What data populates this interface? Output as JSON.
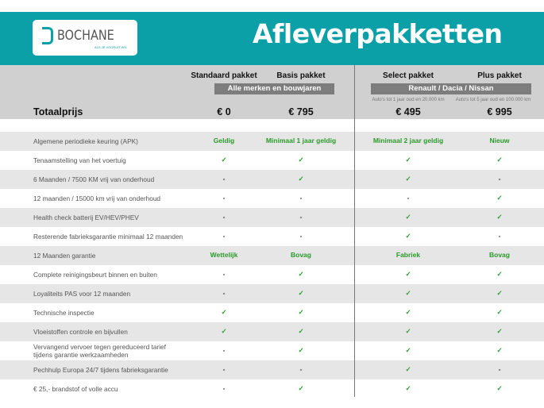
{
  "header": {
    "logo_text": "BOCHANE",
    "logo_tagline": "ALS JE VOORUIT WIL",
    "title": "Afleverpakketten"
  },
  "colors": {
    "brand": "#0ba0a8",
    "check": "#2a9a2a",
    "header_bg": "#d0d0d0",
    "row_alt": "#e6e6e6"
  },
  "packages": [
    {
      "name": "Standaard pakket",
      "price": "€ 0"
    },
    {
      "name": "Basis pakket",
      "price": "€ 795"
    },
    {
      "name": "Select pakket",
      "price": "€ 495",
      "note": "Auto's tot 1 jaar oud en 20.000 km"
    },
    {
      "name": "Plus pakket",
      "price": "€ 995",
      "note": "Auto's tot 5 jaar oud en 100.000 km"
    }
  ],
  "groups": {
    "left": "Alle merken en bouwjaren",
    "right": "Renault / Dacia / Nissan"
  },
  "total_label": "Totaalprijs",
  "rows": [
    {
      "label": "Algemene periodieke keuring (APK)",
      "values": [
        "Geldig",
        "Minimaal 1 jaar geldig",
        "Minimaal 2 jaar geldig",
        "Nieuw"
      ]
    },
    {
      "label": "Tenaamstelling van het voertuig",
      "values": [
        "✓",
        "✓",
        "✓",
        "✓"
      ]
    },
    {
      "label": "6 Maanden / 7500 KM vrij van onderhoud",
      "values": [
        "-",
        "✓",
        "✓",
        "-"
      ]
    },
    {
      "label": "12 maanden / 15000 km vrij van onderhoud",
      "values": [
        "-",
        "-",
        "-",
        "✓"
      ]
    },
    {
      "label": "Health check batterij EV/HEV/PHEV",
      "values": [
        "-",
        "-",
        "✓",
        "✓"
      ]
    },
    {
      "label": "Resterende fabrieksgarantie minimaal 12 maanden",
      "values": [
        "-",
        "-",
        "✓",
        "-"
      ]
    },
    {
      "label": "12 Maanden  garantie",
      "values": [
        "Wettelijk",
        "Bovag",
        "Fabriek",
        "Bovag"
      ]
    },
    {
      "label": "Complete reinigingsbeurt binnen en buiten",
      "values": [
        "-",
        "✓",
        "✓",
        "✓"
      ]
    },
    {
      "label": "Loyaliteits PAS voor 12 maanden",
      "values": [
        "-",
        "✓",
        "✓",
        "✓"
      ]
    },
    {
      "label": "Technische inspectie",
      "values": [
        "✓",
        "✓",
        "✓",
        "✓"
      ]
    },
    {
      "label": "Vloeistoffen controle en bijvullen",
      "values": [
        "✓",
        "✓",
        "✓",
        "✓"
      ]
    },
    {
      "label": "Vervangend vervoer tegen gereduceerd tarief tijdens garantie werkzaamheden",
      "values": [
        "-",
        "✓",
        "✓",
        "✓"
      ]
    },
    {
      "label": "Pechhulp Europa 24/7 tijdens fabrieksgarantie",
      "values": [
        "-",
        "-",
        "✓",
        "-"
      ]
    },
    {
      "label": "€ 25,- brandstof of  volle accu",
      "values": [
        "-",
        "✓",
        "✓",
        "✓"
      ]
    }
  ]
}
